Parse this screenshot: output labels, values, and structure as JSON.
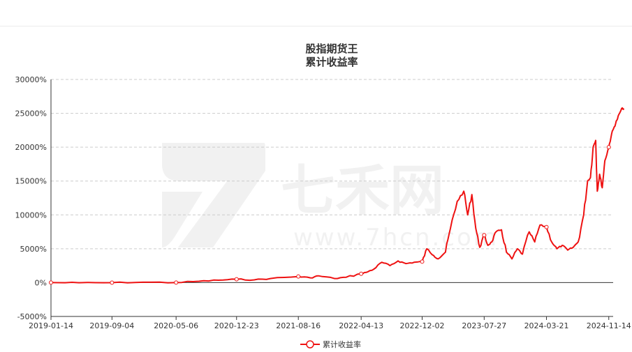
{
  "chart_data": {
    "type": "line",
    "title": "股指期货王",
    "subtitle": "累计收益率",
    "xlabel": "",
    "ylabel": "",
    "ylim": [
      -5000,
      30000
    ],
    "y_ticks": [
      "-5000%",
      "0%",
      "5000%",
      "10000%",
      "15000%",
      "20000%",
      "25000%",
      "30000%"
    ],
    "y_tick_values": [
      -5000,
      0,
      5000,
      10000,
      15000,
      20000,
      25000,
      30000
    ],
    "x_tick_labels": [
      "2019-01-14",
      "2019-09-04",
      "2020-05-06",
      "2020-12-23",
      "2021-08-16",
      "2022-04-13",
      "2022-12-02",
      "2023-07-27",
      "2024-03-21",
      "2024-11-14"
    ],
    "grid": true,
    "legend_position": "bottom",
    "series": [
      {
        "name": "累计收益率",
        "color": "#ee1111",
        "x": [
          "2019-01-14",
          "2019-05-01",
          "2019-09-04",
          "2020-01-01",
          "2020-05-06",
          "2020-08-01",
          "2020-10-15",
          "2020-12-23",
          "2021-03-01",
          "2021-05-01",
          "2021-08-16",
          "2021-10-01",
          "2021-11-01",
          "2022-01-01",
          "2022-02-15",
          "2022-04-13",
          "2022-05-01",
          "2022-06-01",
          "2022-07-01",
          "2022-08-01",
          "2022-09-01",
          "2022-10-01",
          "2022-11-01",
          "2022-12-02",
          "2022-12-20",
          "2023-01-15",
          "2023-02-01",
          "2023-03-01",
          "2023-03-20",
          "2023-04-15",
          "2023-05-10",
          "2023-05-25",
          "2023-06-10",
          "2023-06-25",
          "2023-07-10",
          "2023-07-27",
          "2023-08-10",
          "2023-08-25",
          "2023-09-10",
          "2023-10-01",
          "2023-10-20",
          "2023-11-10",
          "2023-12-01",
          "2023-12-20",
          "2024-01-15",
          "2024-02-05",
          "2024-02-25",
          "2024-03-21",
          "2024-04-10",
          "2024-04-30",
          "2024-05-20",
          "2024-06-10",
          "2024-07-01",
          "2024-07-20",
          "2024-08-10",
          "2024-08-25",
          "2024-09-05",
          "2024-09-15",
          "2024-09-25",
          "2024-10-01",
          "2024-10-10",
          "2024-10-20",
          "2024-10-30",
          "2024-11-14",
          "2024-11-25",
          "2024-12-05",
          "2024-12-15",
          "2024-12-25",
          "2025-01-05",
          "2025-01-10"
        ],
        "values": [
          0,
          -20,
          -10,
          50,
          0,
          200,
          350,
          500,
          400,
          600,
          900,
          700,
          1000,
          600,
          800,
          1300,
          1500,
          2000,
          3000,
          2500,
          3200,
          2800,
          3000,
          3100,
          5000,
          4000,
          3500,
          4500,
          8000,
          12000,
          13500,
          10000,
          13000,
          8000,
          5200,
          7000,
          5500,
          6000,
          7500,
          7800,
          4500,
          3500,
          5000,
          4200,
          7500,
          6000,
          8500,
          8200,
          6000,
          5000,
          5500,
          4800,
          5200,
          6000,
          10000,
          15000,
          15500,
          20000,
          21000,
          13500,
          16000,
          14000,
          18000,
          20000,
          22000,
          23000,
          24000,
          25000,
          25800,
          25500
        ],
        "markers": [
          "2019-01-14",
          "2019-09-04",
          "2020-05-06",
          "2020-12-23",
          "2021-08-16",
          "2022-04-13",
          "2022-12-02",
          "2023-07-27",
          "2024-03-21",
          "2024-11-14"
        ]
      }
    ]
  }
}
